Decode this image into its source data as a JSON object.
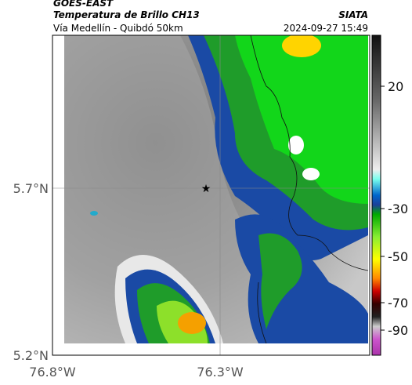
{
  "header": {
    "source": "GOES-EAST",
    "product": "Temperatura de Brillo CH13",
    "region": "Vía Medellín - Quibdó 50km",
    "agency": "SIATA",
    "datetime": "2024-09-27 15:49"
  },
  "map": {
    "lat_labels": [
      "5.7°N",
      "5.2°N"
    ],
    "lon_labels": [
      "76.8°W",
      "76.3°W"
    ],
    "colorbar": {
      "ticks": [
        20,
        -30,
        -50,
        -70,
        -90
      ]
    }
  }
}
